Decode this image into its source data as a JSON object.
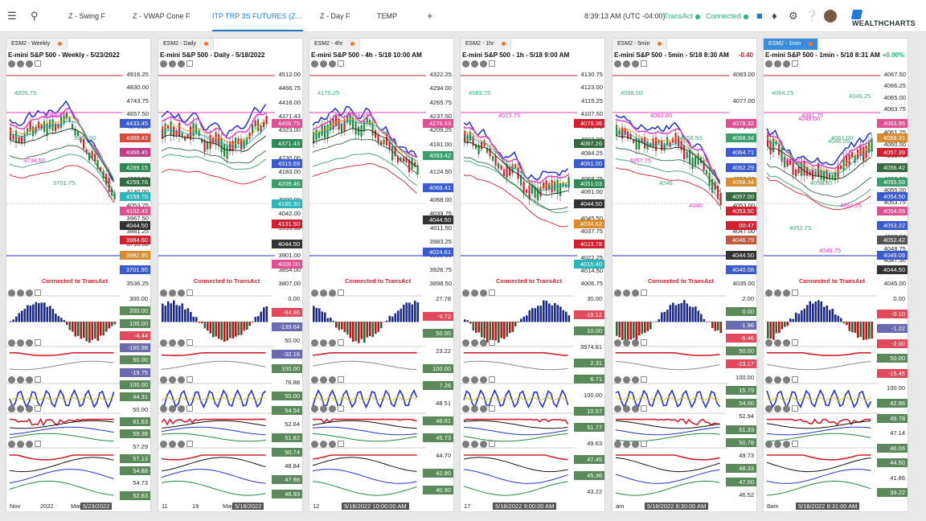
{
  "topbar": {
    "tabs": [
      "Z - Swing F",
      "Z - VWAP Cone F",
      "ITP TRP 3S FUTURES (Z…",
      "Z - Day F",
      "TEMP"
    ],
    "active_tab": 2,
    "clock": "8:39:13 AM",
    "timezone": "(UTC -04:00)",
    "transact": "TransAct",
    "connected": "Connected",
    "brand": "WEALTHCHARTS",
    "icons": [
      "menu-icon",
      "search-icon",
      "plus-icon",
      "save-icon",
      "bell-icon",
      "gear-icon",
      "help-icon"
    ]
  },
  "panels": [
    {
      "tab": "ESM2 - Weekly",
      "title": "E-mini S&P 500 - Weekly - 5/23/2022",
      "change": "",
      "axis": [
        "4916.25",
        "4830.00",
        "4743.75",
        "4657.50",
        "4571.25",
        "4485.00",
        "4398.75",
        "4312.50",
        "4226.25",
        "4140.00",
        "4053.75",
        "3967.50",
        "3881.25",
        "3795.00",
        "3708.75",
        "3622.50",
        "3536.25"
      ],
      "labels": [
        [
          "4433.45",
          "#3a5bd0"
        ],
        [
          "4388.43",
          "#d94a3a"
        ],
        [
          "4366.45",
          "#c23b8a"
        ],
        [
          "4289.15",
          "#2e8b57"
        ],
        [
          "4259.76",
          "#356b40"
        ],
        [
          "4159.70",
          "#2cb5b8"
        ],
        [
          "4102.43",
          "#e05090"
        ],
        [
          "4044.50",
          "#333"
        ],
        [
          "3984.60",
          "#d3202f"
        ],
        [
          "3982.95",
          "#d98c2c"
        ],
        [
          "3701.95",
          "#3a5bd0"
        ]
      ],
      "chart_labels": [
        "4805.75",
        "4062.25",
        "3984.50",
        "3734.50",
        "3701.75"
      ],
      "sub_vals": [
        "300.00",
        "200.00",
        "100.00",
        "-4.44",
        "-160.98",
        "50.00",
        "-19.75",
        "100.00",
        "44.31",
        "50.00",
        "61.63",
        "59.38",
        "57.29",
        "57.13",
        "54.88",
        "54.73",
        "52.63"
      ],
      "dates": [
        "Nov",
        "2022",
        "Mar",
        "5/23/2022"
      ]
    },
    {
      "tab": "ESM2 - Daily",
      "title": "E-mini S&P 500 - Daily - 5/18/2022",
      "change": "",
      "axis": [
        "4512.00",
        "4466.75",
        "4418.00",
        "4371.43",
        "4323.00",
        "4277.00",
        "4230.00",
        "4183.00",
        "4136.00",
        "4089.00",
        "4042.00",
        "3995.00",
        "3948.00",
        "3901.00",
        "3854.00",
        "3807.00"
      ],
      "labels": [
        [
          "4466.75",
          "#e05090"
        ],
        [
          "4371.43",
          "#2e8b57"
        ],
        [
          "4315.69",
          "#3a5bd0"
        ],
        [
          "4209.46",
          "#3a9f6d"
        ],
        [
          "4160.30",
          "#2cb5b8"
        ],
        [
          "4131.50",
          "#d3202f"
        ],
        [
          "4044.50",
          "#333"
        ],
        [
          "4008.00",
          "#e05090"
        ]
      ],
      "chart_labels": [],
      "sub_vals": [
        "0.00",
        "-94.86",
        "-139.64",
        "50.00",
        "-32.18",
        "100.00",
        "76.88",
        "50.00",
        "54.54",
        "52.64",
        "51.82",
        "50.74",
        "48.84",
        "47.98",
        "46.93"
      ],
      "dates": [
        "11",
        "19",
        "May",
        "08",
        "5/18/2022"
      ]
    },
    {
      "tab": "ESM2 - 4hr",
      "title": "E-mini S&P 500 - 4h - 5/18 10:00 AM",
      "change": "",
      "axis": [
        "4322.25",
        "4294.00",
        "4265.75",
        "4237.50",
        "4209.25",
        "4181.00",
        "4152.75",
        "4124.50",
        "4096.25",
        "4068.00",
        "4039.75",
        "4011.50",
        "3983.25",
        "3955.00",
        "3926.75",
        "3898.50"
      ],
      "labels": [
        [
          "4278.63",
          "#e05090"
        ],
        [
          "4093.42",
          "#3a9f6d"
        ],
        [
          "4068.41",
          "#3a5bd0"
        ],
        [
          "4044.50",
          "#333"
        ],
        [
          "4024.61",
          "#3a5bd0"
        ]
      ],
      "chart_labels": [
        "4170.25",
        "4068.25"
      ],
      "sub_vals": [
        "27.78",
        "-9.72",
        "50.00",
        "23.22",
        "100.00",
        "7.26",
        "48.51",
        "46.61",
        "45.73",
        "44.70",
        "42.80",
        "40.90"
      ],
      "dates": [
        "12",
        "13",
        "5/18/2022 10:00:00 AM"
      ]
    },
    {
      "tab": "ESM2 - 1hr",
      "title": "E-mini S&P 500 - 1h - 5/18 9:00 AM",
      "change": "",
      "axis": [
        "4130.75",
        "4123.00",
        "4115.25",
        "4107.50",
        "4099.75",
        "4092.00",
        "4084.25",
        "4076.50",
        "4068.75",
        "4061.00",
        "4053.25",
        "4045.50",
        "4037.75",
        "4030.00",
        "4022.25",
        "4014.50",
        "4006.75"
      ],
      "labels": [
        [
          "4079.36",
          "#d3202f"
        ],
        [
          "4067.26",
          "#356b40"
        ],
        [
          "4061.00",
          "#3a5bd0"
        ],
        [
          "4051.03",
          "#2e8b57"
        ],
        [
          "4044.50",
          "#333"
        ],
        [
          "4034.62",
          "#d98c2c"
        ],
        [
          "4023.78",
          "#d3202f"
        ],
        [
          "4015.40",
          "#2cb5b8"
        ]
      ],
      "chart_labels": [
        "4083.75",
        "4023.75"
      ],
      "sub_vals": [
        "30.00",
        "-19.12",
        "10.00",
        "3974.81",
        "2.31",
        "6.71",
        "100.00",
        "10.57",
        "51.77",
        "49.63",
        "47.45",
        "45.36",
        "43.22"
      ],
      "dates": [
        "17",
        "7am",
        "5/18/2022 9:00:00 AM"
      ]
    },
    {
      "tab": "ESM2 - 5min",
      "title": "E-mini S&P 500 - 5min - 5/18 8:30 AM",
      "change": "-0.40",
      "change_color": "#d3202f",
      "axis": [
        "4083.00",
        "4077.00",
        "4071.00",
        "4065.00",
        "4059.00",
        "4053.00",
        "4047.00",
        "4041.00",
        "4035.00"
      ],
      "labels": [
        [
          "4078.32",
          "#e05090"
        ],
        [
          "4068.34",
          "#3a9f6d"
        ],
        [
          "4064.71",
          "#3a5bd0"
        ],
        [
          "4062.29",
          "#3a5bd0"
        ],
        [
          "4058.34",
          "#d98c2c"
        ],
        [
          "4057.00",
          "#356b40"
        ],
        [
          "4053.50",
          "#d3202f"
        ],
        [
          "00:47",
          "#d3202f"
        ],
        [
          "4046.79",
          "#c05a3a"
        ],
        [
          "4044.50",
          "#333"
        ],
        [
          "4040.08",
          "#3a5bd0"
        ]
      ],
      "chart_labels": [
        "4068.50",
        "4063.00",
        "4056.50",
        "4057.75",
        "4046",
        "4040"
      ],
      "sub_vals": [
        "2.00",
        "0.00",
        "-1.96",
        "-5.46",
        "50.00",
        "-23.17",
        "100.00",
        "15.79",
        "54.00",
        "52.94",
        "51.33",
        "50.78",
        "49.73",
        "48.33",
        "47.00",
        "46.52"
      ],
      "dates": [
        "am",
        ":30",
        "7a",
        "5/18/2022 8:30:00 AM"
      ]
    },
    {
      "tab": "ESM2 - 1min",
      "title": "E-mini S&P 500 - 1min - 5/18 8:31 AM",
      "change": "+0.00%",
      "change_color": "#2bb673",
      "axis": [
        "4067.50",
        "4066.25",
        "4065.00",
        "4063.75",
        "4062.50",
        "4061.25",
        "4060.00",
        "4058.75",
        "4057.50",
        "4056.25",
        "4055.00",
        "4053.75",
        "4052.50",
        "4051.25",
        "4050.00",
        "4048.75",
        "4047.50",
        "4046.25",
        "4045.00"
      ],
      "labels": [
        [
          "4063.95",
          "#e05090"
        ],
        [
          "4059.31",
          "#d98c2c"
        ],
        [
          "4057.39",
          "#d3202f"
        ],
        [
          "4056.42",
          "#356b40"
        ],
        [
          "4055.59",
          "#3a9f6d"
        ],
        [
          "4054.50",
          "#3a5bd0"
        ],
        [
          "4054.09",
          "#e05090"
        ],
        [
          "4053.22",
          "#3a5bd0"
        ],
        [
          "4052.42",
          "#555"
        ],
        [
          "4049.09",
          "#3a5bd0"
        ],
        [
          "4044.50",
          "#333"
        ]
      ],
      "chart_labels": [
        "4064.25",
        "4061.75",
        "4061.00",
        "4060.50",
        "4058.50",
        "4057.25",
        "4052.75",
        "4049.75",
        "4049.25",
        "4049.00",
        "4046.00"
      ],
      "sub_vals": [
        "0.00",
        "-0.10",
        "-1.22",
        "-2.00",
        "50.00",
        "-15.45",
        "100.00",
        "42.86",
        "49.78",
        "47.14",
        "46.06",
        "44.50",
        "41.86",
        "39.22"
      ],
      "dates": [
        "8am",
        ":15",
        "5/18/2022 8:31:00 AM"
      ]
    }
  ],
  "status": {
    "connected_text": "Connected to TransAct"
  }
}
